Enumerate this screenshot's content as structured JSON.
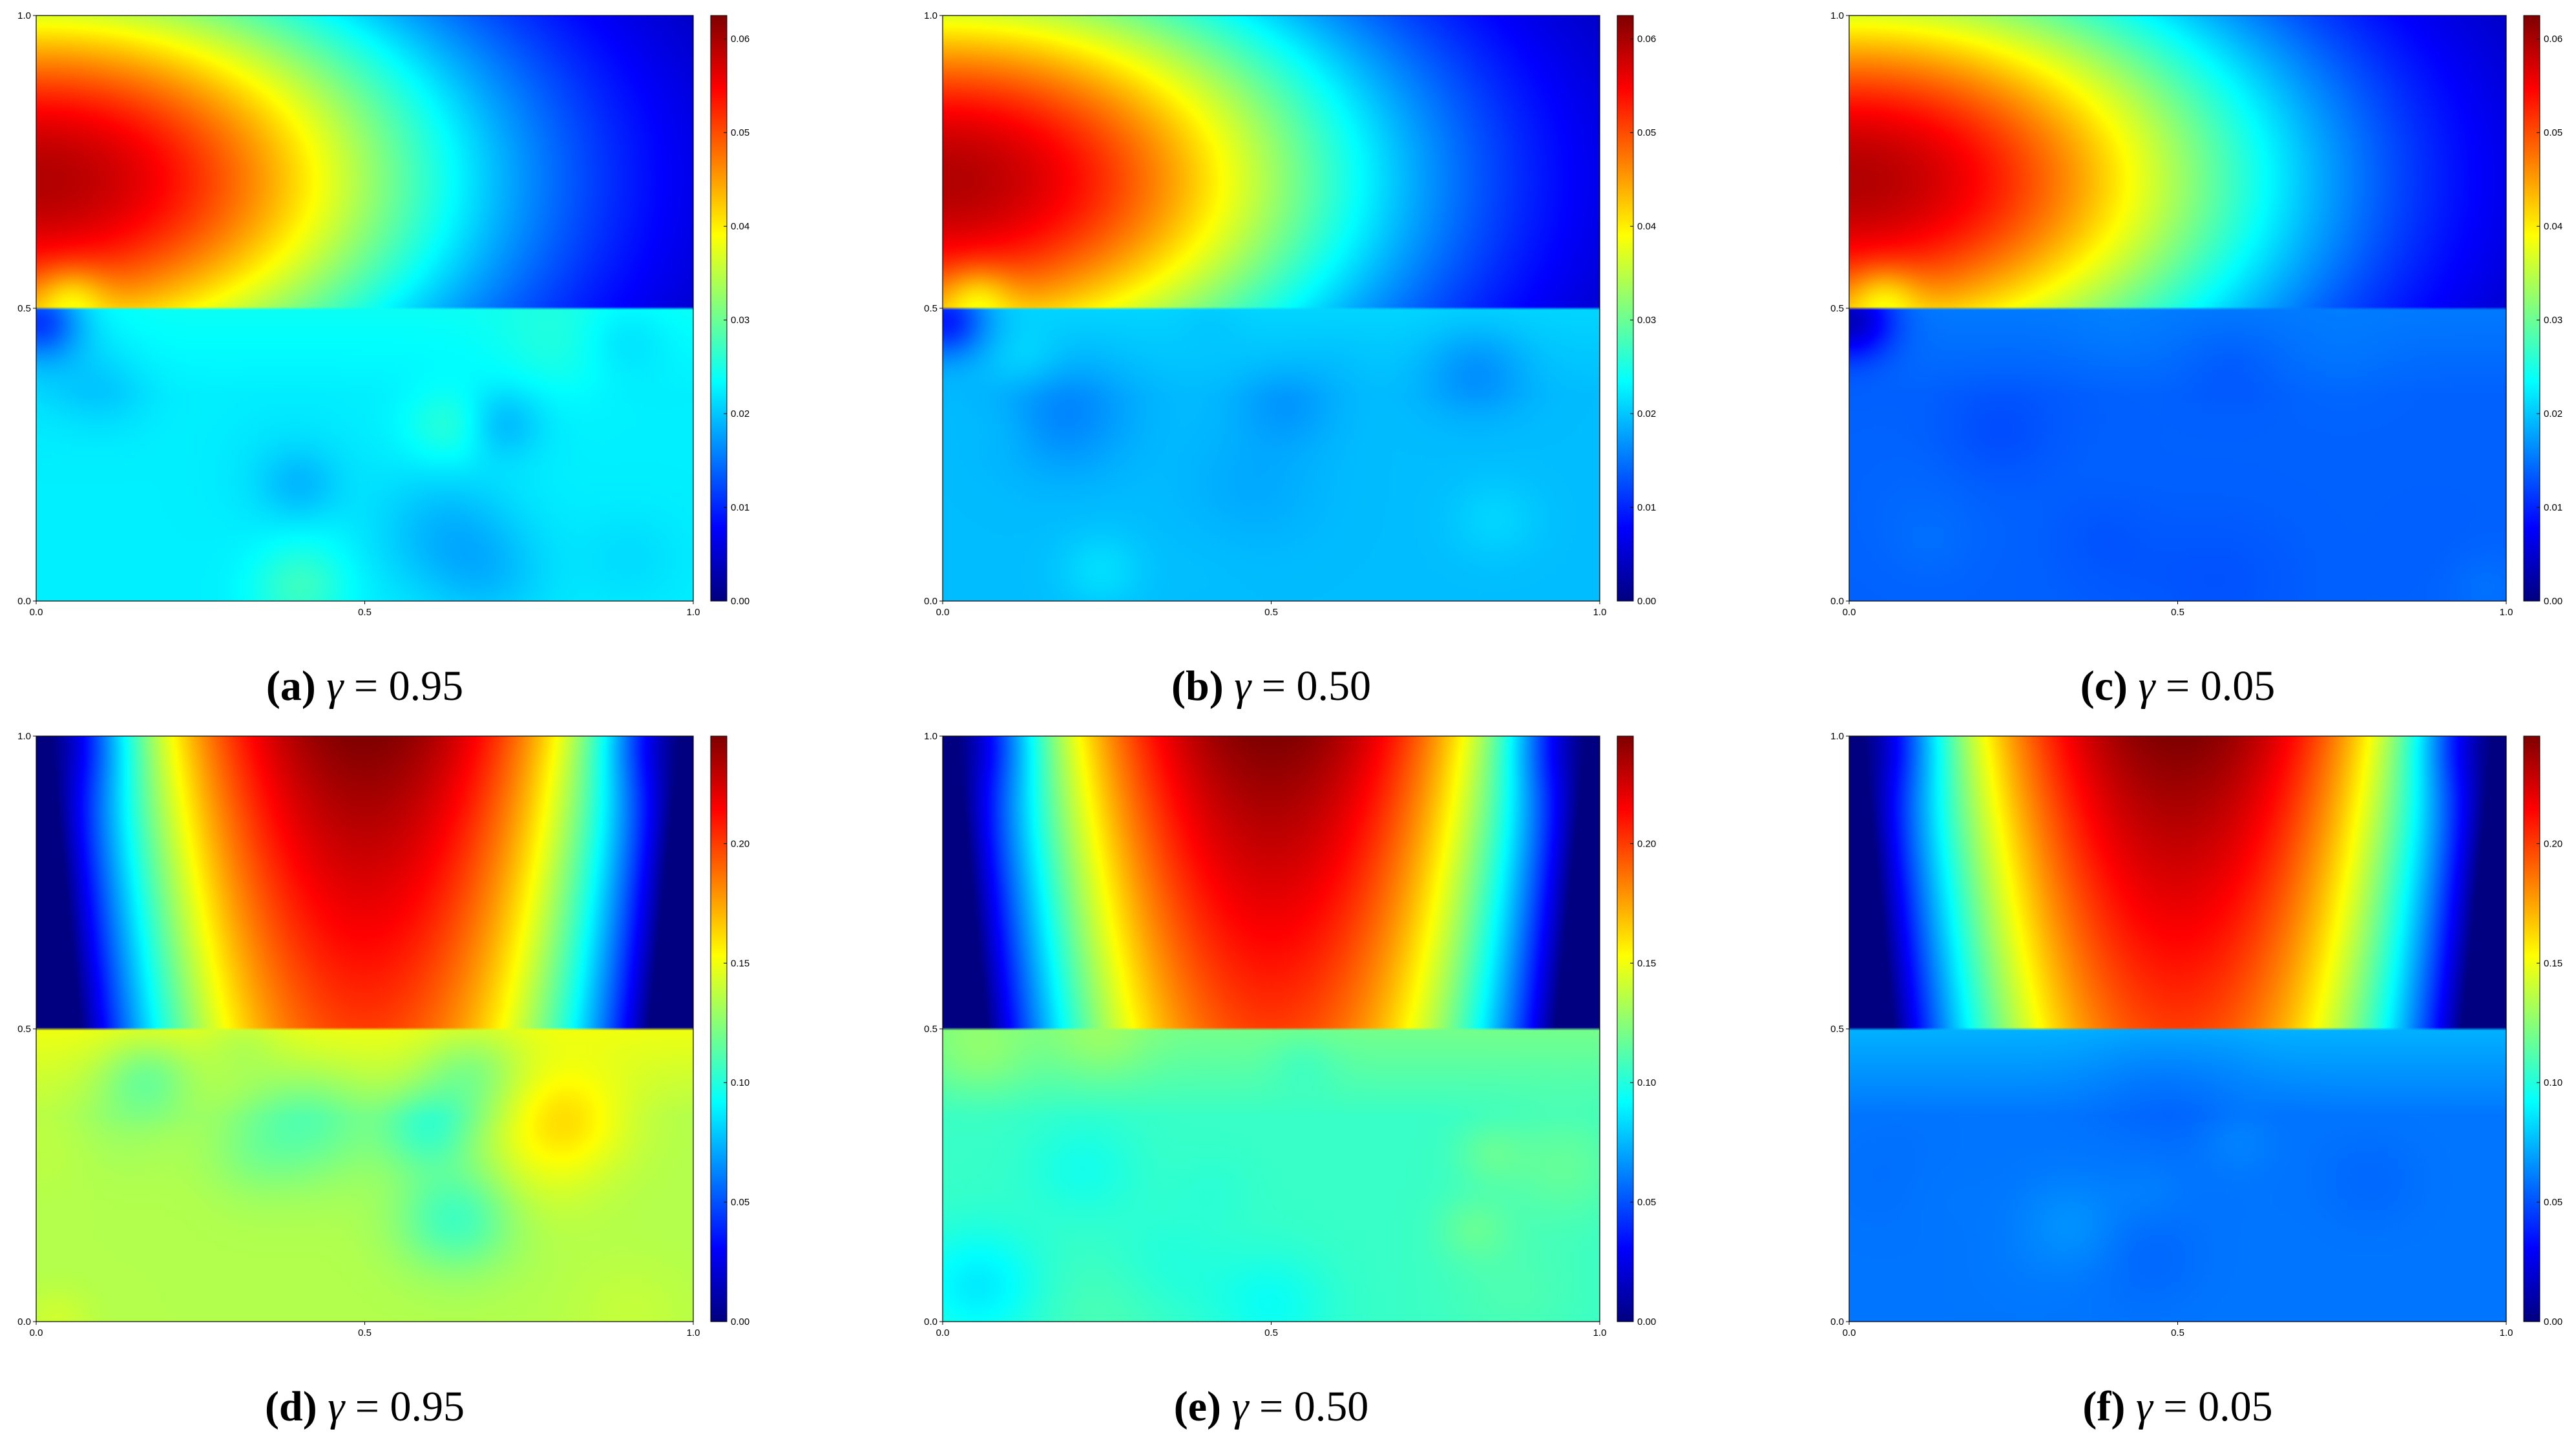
{
  "figure": {
    "colormap": "jet",
    "colormap_stops": [
      "#00007f",
      "#0000ff",
      "#007fff",
      "#00ffff",
      "#7fff7f",
      "#ffff00",
      "#ff7f00",
      "#ff0000",
      "#7f0000"
    ]
  },
  "chart_data": [
    {
      "type": "heatmap",
      "id": "a",
      "caption": {
        "label": "(a)",
        "gamma_symbol": "γ",
        "equals": "=",
        "value": "0.95"
      },
      "xlim": [
        0,
        1
      ],
      "ylim": [
        0,
        1
      ],
      "xticks": [
        "0.0",
        "0.5",
        "1.0"
      ],
      "yticks": [
        "0.0",
        "0.5",
        "1.0"
      ],
      "colorbar": {
        "min": 0,
        "max": 0.0625,
        "ticks": [
          "0.00",
          "0.01",
          "0.02",
          "0.03",
          "0.04",
          "0.05",
          "0.06"
        ]
      },
      "field": {
        "pattern": "corner",
        "low_level": 0.36,
        "low_variation": 0.07
      }
    },
    {
      "type": "heatmap",
      "id": "b",
      "caption": {
        "label": "(b)",
        "gamma_symbol": "γ",
        "equals": "=",
        "value": "0.50"
      },
      "xlim": [
        0,
        1
      ],
      "ylim": [
        0,
        1
      ],
      "xticks": [
        "0.0",
        "0.5",
        "1.0"
      ],
      "yticks": [
        "0.0",
        "0.5",
        "1.0"
      ],
      "colorbar": {
        "min": 0,
        "max": 0.0625,
        "ticks": [
          "0.00",
          "0.01",
          "0.02",
          "0.03",
          "0.04",
          "0.05",
          "0.06"
        ]
      },
      "field": {
        "pattern": "corner",
        "low_level": 0.31,
        "low_variation": 0.06
      }
    },
    {
      "type": "heatmap",
      "id": "c",
      "caption": {
        "label": "(c)",
        "gamma_symbol": "γ",
        "equals": "=",
        "value": "0.05"
      },
      "xlim": [
        0,
        1
      ],
      "ylim": [
        0,
        1
      ],
      "xticks": [
        "0.0",
        "0.5",
        "1.0"
      ],
      "yticks": [
        "0.0",
        "0.5",
        "1.0"
      ],
      "colorbar": {
        "min": 0,
        "max": 0.0625,
        "ticks": [
          "0.00",
          "0.01",
          "0.02",
          "0.03",
          "0.04",
          "0.05",
          "0.06"
        ]
      },
      "field": {
        "pattern": "corner",
        "low_level": 0.22,
        "low_variation": 0.02
      }
    },
    {
      "type": "heatmap",
      "id": "d",
      "caption": {
        "label": "(d)",
        "gamma_symbol": "γ",
        "equals": "=",
        "value": "0.95"
      },
      "xlim": [
        0,
        1
      ],
      "ylim": [
        0,
        1
      ],
      "xticks": [
        "0.0",
        "0.5",
        "1.0"
      ],
      "yticks": [
        "0.0",
        "0.5",
        "1.0"
      ],
      "colorbar": {
        "min": 0,
        "max": 0.245,
        "ticks": [
          "0.00",
          "0.05",
          "0.10",
          "0.15",
          "0.20"
        ]
      },
      "field": {
        "pattern": "center",
        "low_level": 0.55,
        "low_variation": 0.12
      }
    },
    {
      "type": "heatmap",
      "id": "e",
      "caption": {
        "label": "(e)",
        "gamma_symbol": "γ",
        "equals": "=",
        "value": "0.50"
      },
      "xlim": [
        0,
        1
      ],
      "ylim": [
        0,
        1
      ],
      "xticks": [
        "0.0",
        "0.5",
        "1.0"
      ],
      "yticks": [
        "0.0",
        "0.5",
        "1.0"
      ],
      "colorbar": {
        "min": 0,
        "max": 0.245,
        "ticks": [
          "0.00",
          "0.05",
          "0.10",
          "0.15",
          "0.20"
        ]
      },
      "field": {
        "pattern": "center",
        "low_level": 0.43,
        "low_variation": 0.08
      }
    },
    {
      "type": "heatmap",
      "id": "f",
      "caption": {
        "label": "(f)",
        "gamma_symbol": "γ",
        "equals": "=",
        "value": "0.05"
      },
      "xlim": [
        0,
        1
      ],
      "ylim": [
        0,
        1
      ],
      "xticks": [
        "0.0",
        "0.5",
        "1.0"
      ],
      "yticks": [
        "0.0",
        "0.5",
        "1.0"
      ],
      "colorbar": {
        "min": 0,
        "max": 0.245,
        "ticks": [
          "0.00",
          "0.05",
          "0.10",
          "0.15",
          "0.20"
        ]
      },
      "field": {
        "pattern": "center",
        "low_level": 0.24,
        "low_variation": 0.03
      }
    }
  ]
}
